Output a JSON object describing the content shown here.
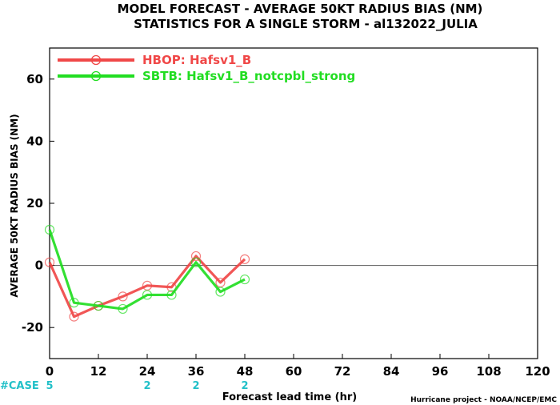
{
  "chart_data": {
    "type": "line",
    "title": "MODEL FORECAST - AVERAGE 50KT RADIUS BIAS (NM)",
    "subtitle": "STATISTICS FOR A SINGLE STORM - al132022_JULIA",
    "xlabel": "Forecast lead time (hr)",
    "ylabel": "AVERAGE 50KT RADIUS BIAS (NM)",
    "xlim": [
      0,
      120
    ],
    "ylim": [
      -30,
      70
    ],
    "xticks": [
      0,
      12,
      24,
      36,
      48,
      60,
      72,
      84,
      96,
      108,
      120
    ],
    "yticks": [
      -20,
      0,
      20,
      40,
      60
    ],
    "zero_line": true,
    "legend_position": "top-left",
    "series": [
      {
        "name": "HBOP: Hafsv1_B",
        "color": "#f04848",
        "x": [
          0,
          6,
          12,
          18,
          24,
          30,
          36,
          42,
          48
        ],
        "values": [
          1,
          -16.5,
          -13,
          -10,
          -6.5,
          -7,
          3,
          -5.5,
          2
        ]
      },
      {
        "name": "SBTB: Hafsv1_B_notcpbl_strong",
        "color": "#22dd22",
        "x": [
          0,
          6,
          12,
          18,
          24,
          30,
          36,
          42,
          48
        ],
        "values": [
          11.5,
          -12,
          -13,
          -14,
          -9.5,
          -9.5,
          1,
          -8.5,
          -4.5
        ]
      }
    ],
    "case_label": "#CASE",
    "case_color": "#22c0c8",
    "cases": [
      {
        "x": 0,
        "n": "5"
      },
      {
        "x": 24,
        "n": "2"
      },
      {
        "x": 36,
        "n": "2"
      },
      {
        "x": 48,
        "n": "2"
      }
    ]
  },
  "credit": "Hurricane project - NOAA/NCEP/EMC"
}
